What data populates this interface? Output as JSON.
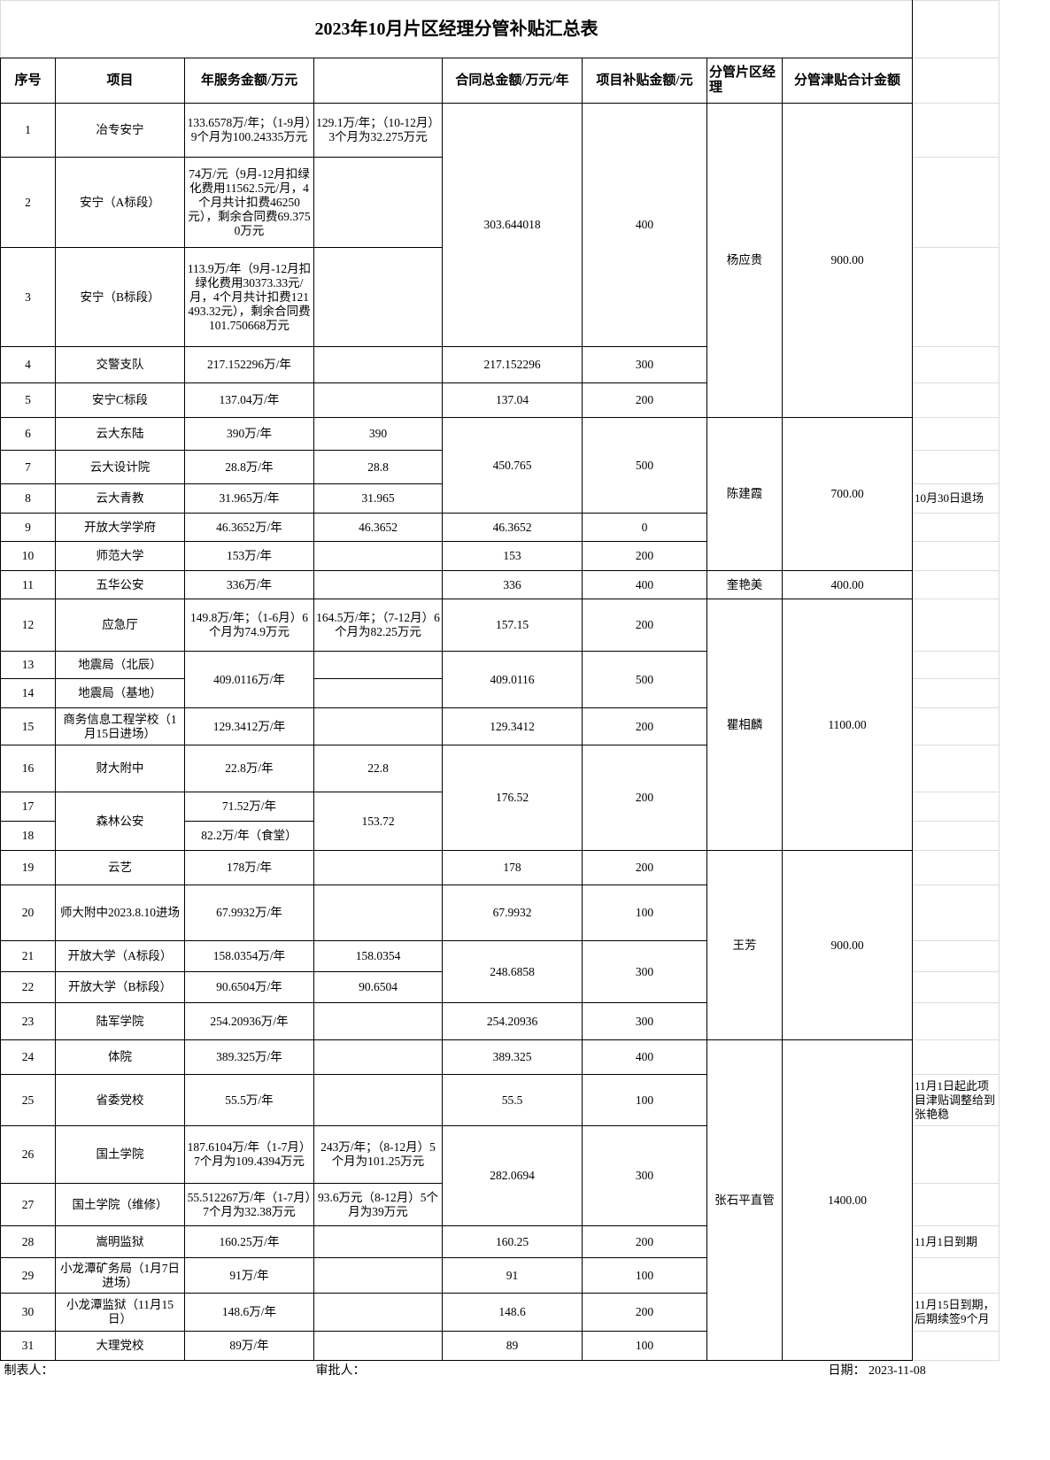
{
  "title": "2023年10月片区经理分管补贴汇总表",
  "headers": [
    "序号",
    "项目",
    "年服务金额/万元",
    "",
    "合同总金额/万元/年",
    "项目补贴金额/元",
    "分管片区经理",
    "分管津贴合计金额"
  ],
  "rows": [
    {
      "no": "1",
      "project": "冶专安宁",
      "annual": "133.6578万/年；（1-9月）9个月为100.24335万元",
      "annual2": "129.1万/年；（10-12月）3个月为32.275万元",
      "contract": "303.644018",
      "subsidy": "400",
      "manager": "杨应贵",
      "manager_total": "900.00",
      "note": ""
    },
    {
      "no": "2",
      "project": "安宁（A标段）",
      "annual": "74万/元（9月-12月扣绿化费用11562.5元/月，4个月共计扣费46250元），剩余合同费69.3750万元",
      "annual2": "",
      "note": ""
    },
    {
      "no": "3",
      "project": "安宁（B标段）",
      "annual": "113.9万/年（9月-12月扣绿化费用30373.33元/月，4个月共计扣费121493.32元），剩余合同费101.750668万元",
      "annual2": "",
      "note": ""
    },
    {
      "no": "4",
      "project": "交警支队",
      "annual": "217.152296万/年",
      "annual2": "",
      "contract": "217.152296",
      "subsidy": "300",
      "note": ""
    },
    {
      "no": "5",
      "project": "安宁C标段",
      "annual": "137.04万/年",
      "annual2": "",
      "contract": "137.04",
      "subsidy": "200",
      "note": ""
    },
    {
      "no": "6",
      "project": "云大东陆",
      "annual": "390万/年",
      "annual2": "390",
      "contract": "450.765",
      "subsidy": "500",
      "manager": "陈建霞",
      "manager_total": "700.00",
      "note": ""
    },
    {
      "no": "7",
      "project": "云大设计院",
      "annual": "28.8万/年",
      "annual2": "28.8",
      "note": ""
    },
    {
      "no": "8",
      "project": "云大青教",
      "annual": "31.965万/年",
      "annual2": "31.965",
      "note": "10月30日退场"
    },
    {
      "no": "9",
      "project": "开放大学学府",
      "annual": "46.3652万/年",
      "annual2": "46.3652",
      "contract": "46.3652",
      "subsidy": "0",
      "note": ""
    },
    {
      "no": "10",
      "project": "师范大学",
      "annual": "153万/年",
      "annual2": "",
      "contract": "153",
      "subsidy": "200",
      "note": ""
    },
    {
      "no": "11",
      "project": "五华公安",
      "annual": "336万/年",
      "annual2": "",
      "contract": "336",
      "subsidy": "400",
      "manager": "奎艳美",
      "manager_total": "400.00",
      "note": ""
    },
    {
      "no": "12",
      "project": "应急厅",
      "annual": "149.8万/年；（1-6月）6个月为74.9万元",
      "annual2": "164.5万/年；（7-12月）6个月为82.25万元",
      "contract": "157.15",
      "subsidy": "200",
      "manager": "瞿相麟",
      "manager_total": "1100.00",
      "note": ""
    },
    {
      "no": "13",
      "project": "地震局（北辰）",
      "annual": "409.0116万/年",
      "annual2": "",
      "contract": "409.0116",
      "subsidy": "500",
      "note": ""
    },
    {
      "no": "14",
      "project": "地震局（基地）",
      "annual2": "",
      "note": ""
    },
    {
      "no": "15",
      "project": "商务信息工程学校（1月15日进场）",
      "annual": "129.3412万/年",
      "annual2": "",
      "contract": "129.3412",
      "subsidy": "200",
      "note": ""
    },
    {
      "no": "16",
      "project": "财大附中",
      "annual": "22.8万/年",
      "annual2": "22.8",
      "contract": "176.52",
      "subsidy": "200",
      "note": ""
    },
    {
      "no": "17",
      "project": "森林公安",
      "annual": "71.52万/年",
      "annual2": "153.72",
      "note": ""
    },
    {
      "no": "18",
      "annual": "82.2万/年（食堂）",
      "note": ""
    },
    {
      "no": "19",
      "project": "云艺",
      "annual": "178万/年",
      "annual2": "",
      "contract": "178",
      "subsidy": "200",
      "manager": "王芳",
      "manager_total": "900.00",
      "note": ""
    },
    {
      "no": "20",
      "project": "师大附中2023.8.10进场",
      "annual": "67.9932万/年",
      "annual2": "",
      "contract": "67.9932",
      "subsidy": "100",
      "note": ""
    },
    {
      "no": "21",
      "project": "开放大学（A标段）",
      "annual": "158.0354万/年",
      "annual2": "158.0354",
      "contract": "248.6858",
      "subsidy": "300",
      "note": ""
    },
    {
      "no": "22",
      "project": "开放大学（B标段）",
      "annual": "90.6504万/年",
      "annual2": "90.6504",
      "note": ""
    },
    {
      "no": "23",
      "project": "陆军学院",
      "annual": "254.20936万/年",
      "annual2": "",
      "contract": "254.20936",
      "subsidy": "300",
      "note": ""
    },
    {
      "no": "24",
      "project": "体院",
      "annual": "389.325万/年",
      "annual2": "",
      "contract": "389.325",
      "subsidy": "400",
      "manager": "张石平直管",
      "manager_total": "1400.00",
      "note": ""
    },
    {
      "no": "25",
      "project": "省委党校",
      "annual": "55.5万/年",
      "annual2": "",
      "contract": "55.5",
      "subsidy": "100",
      "note": "11月1日起此项目津贴调整给到张艳稳"
    },
    {
      "no": "26",
      "project": "国土学院",
      "annual": "187.6104万/年（1-7月）7个月为109.4394万元",
      "annual2": "243万/年；（8-12月）5个月为101.25万元",
      "contract": "282.0694",
      "subsidy": "300",
      "note": ""
    },
    {
      "no": "27",
      "project": "国土学院（维修）",
      "annual": "55.512267万/年（1-7月）7个月为32.38万元",
      "annual2": "93.6万元（8-12月）5个月为39万元",
      "note": ""
    },
    {
      "no": "28",
      "project": "嵩明监狱",
      "annual": "160.25万/年",
      "annual2": "",
      "contract": "160.25",
      "subsidy": "200",
      "note": "11月1日到期"
    },
    {
      "no": "29",
      "project": "小龙潭矿务局（1月7日进场）",
      "annual": "91万/年",
      "annual2": "",
      "contract": "91",
      "subsidy": "100",
      "note": ""
    },
    {
      "no": "30",
      "project": "小龙潭监狱（11月15日）",
      "annual": "148.6万/年",
      "annual2": "",
      "contract": "148.6",
      "subsidy": "200",
      "note": "11月15日到期，后期续签9个月"
    },
    {
      "no": "31",
      "project": "大理党校",
      "annual": "89万/年",
      "annual2": "",
      "contract": "89",
      "subsidy": "100",
      "note": ""
    }
  ],
  "footer": {
    "preparer": "制表人：",
    "approver": "审批人：",
    "date": "日期：  2023-11-08"
  }
}
